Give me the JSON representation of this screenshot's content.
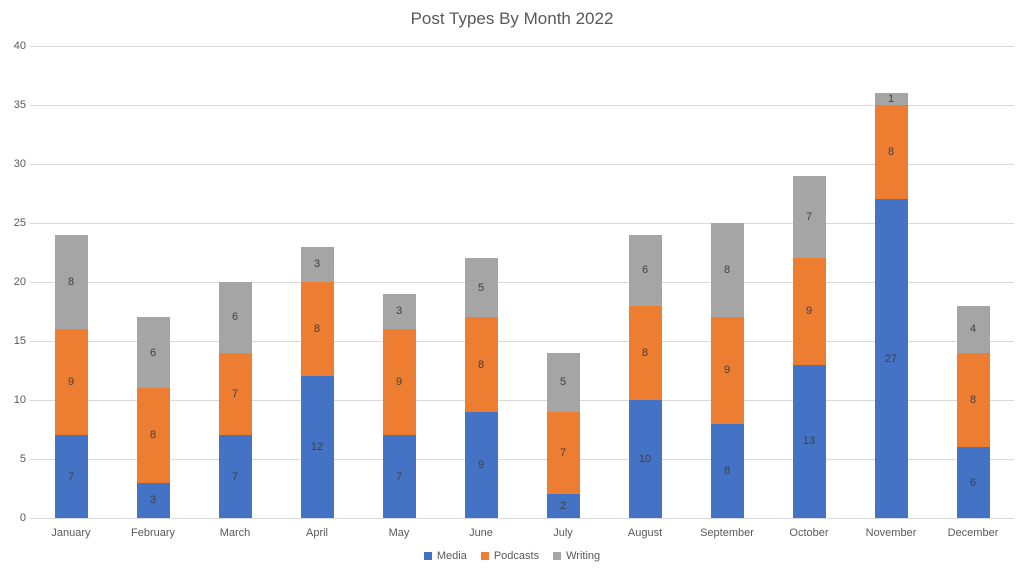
{
  "chart_data": {
    "type": "bar",
    "stacked": true,
    "title": "Post Types By Month 2022",
    "categories": [
      "January",
      "February",
      "March",
      "April",
      "May",
      "June",
      "July",
      "August",
      "September",
      "October",
      "November",
      "December"
    ],
    "series": [
      {
        "name": "Media",
        "color": "#4472C4",
        "values": [
          7,
          3,
          7,
          12,
          7,
          9,
          2,
          10,
          8,
          13,
          27,
          6
        ]
      },
      {
        "name": "Podcasts",
        "color": "#ED7D31",
        "values": [
          9,
          8,
          7,
          8,
          9,
          8,
          7,
          8,
          9,
          9,
          8,
          8
        ]
      },
      {
        "name": "Writing",
        "color": "#A5A5A5",
        "values": [
          8,
          6,
          6,
          3,
          3,
          5,
          5,
          6,
          8,
          7,
          1,
          4
        ]
      }
    ],
    "xlabel": "",
    "ylabel": "",
    "ylim": [
      0,
      40
    ],
    "ytick_step": 5,
    "grid": true,
    "data_labels": true,
    "legend_position": "bottom"
  },
  "colors": {
    "background": "#FFFFFF",
    "gridline": "#D9D9D9",
    "axis_text": "#595959",
    "title_text": "#595959",
    "data_label_text": "#404040"
  }
}
